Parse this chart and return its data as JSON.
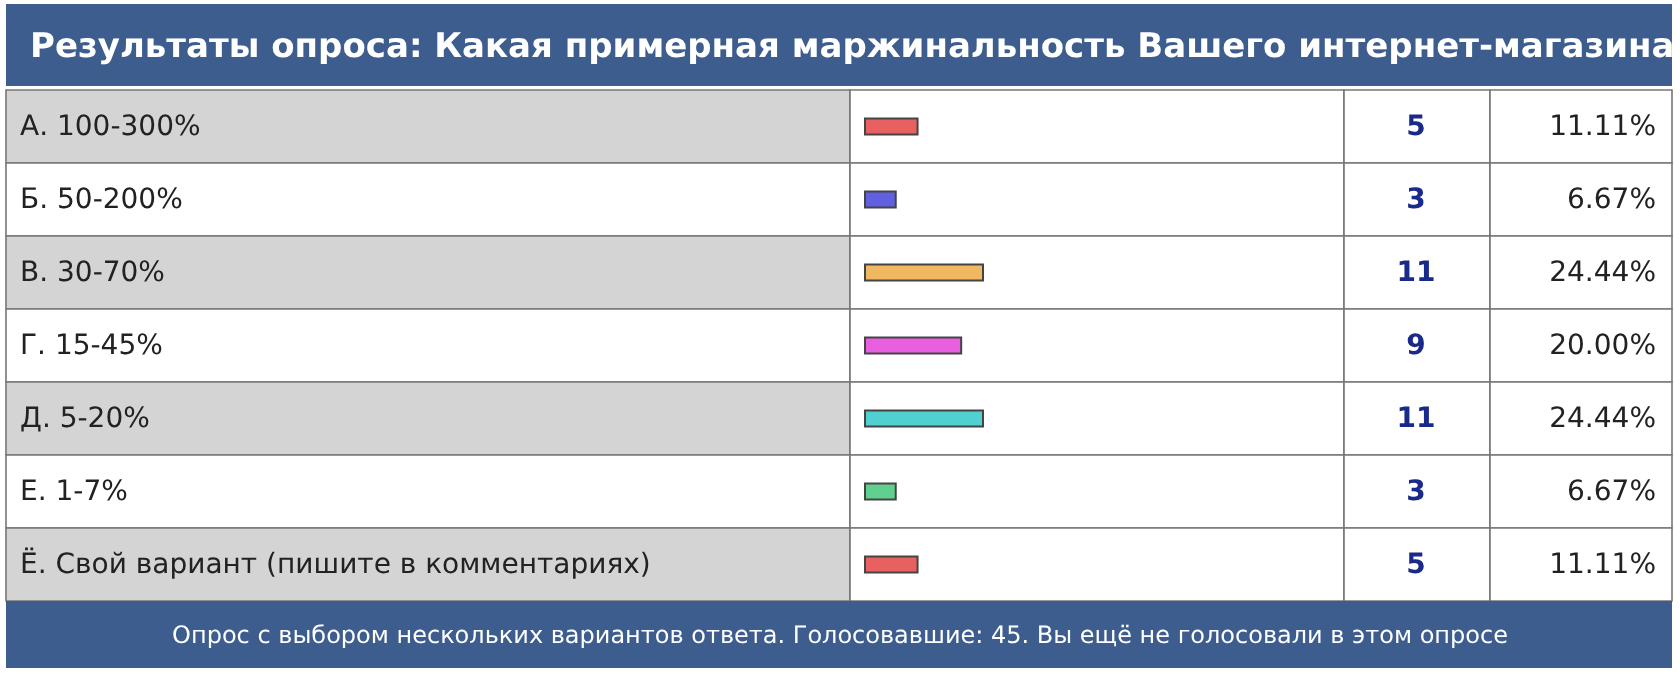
{
  "chart_data": {
    "type": "bar",
    "orientation": "horizontal",
    "title": "Результаты опроса: Какая примерная маржинальность Вашего интернет-магазина",
    "categories": [
      "А. 100-300%",
      "Б. 50-200%",
      "В. 30-70%",
      "Г. 15-45%",
      "Д. 5-20%",
      "Е. 1-7%",
      "Ё. Свой вариант (пишите в комментариях)"
    ],
    "values": [
      5,
      3,
      11,
      9,
      11,
      3,
      5
    ],
    "colors": [
      "#e86060",
      "#6060e0",
      "#f0b860",
      "#e860e0",
      "#50d0d0",
      "#60d090",
      "#e86060"
    ],
    "data_labels": true,
    "annotations": [
      "11.11%",
      "6.67%",
      "24.44%",
      "20.00%",
      "24.44%",
      "6.67%",
      "11.11%",
      "Опрос с выбором нескольких вариантов ответа. Голосовавшие: 45. Вы ещё не голосовали в этом опросе"
    ]
  }
}
